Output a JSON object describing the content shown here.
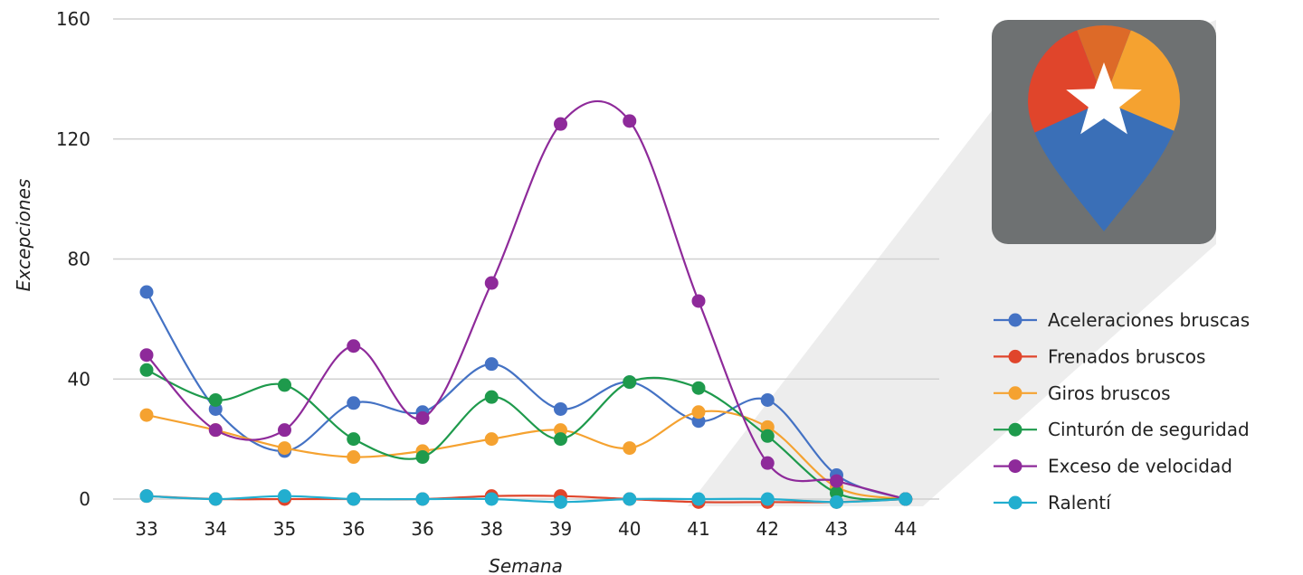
{
  "chart_data": {
    "type": "line",
    "title": "",
    "xlabel": "Semana",
    "ylabel": "Excepciones",
    "categories": [
      "33",
      "34",
      "35",
      "36",
      "36",
      "38",
      "39",
      "40",
      "41",
      "42",
      "43",
      "44"
    ],
    "ylim": [
      0,
      160
    ],
    "yticks": [
      0,
      40,
      80,
      120,
      160
    ],
    "grid": true,
    "smooth": true,
    "legend_position": "right",
    "series": [
      {
        "name": "Aceleraciones bruscas",
        "color": "#4472C4",
        "values": [
          69,
          30,
          16,
          32,
          29,
          45,
          30,
          39,
          26,
          33,
          8,
          0
        ]
      },
      {
        "name": "Frenados bruscos",
        "color": "#E0452B",
        "values": [
          1,
          0,
          0,
          0,
          0,
          1,
          1,
          0,
          -1,
          -1,
          -1,
          0
        ]
      },
      {
        "name": "Giros bruscos",
        "color": "#F5A230",
        "values": [
          28,
          23,
          17,
          14,
          16,
          20,
          23,
          17,
          29,
          24,
          4,
          0
        ]
      },
      {
        "name": "Cinturón de seguridad",
        "color": "#1E9A4C",
        "values": [
          43,
          33,
          38,
          20,
          14,
          34,
          20,
          39,
          37,
          21,
          2,
          0
        ]
      },
      {
        "name": "Exceso de velocidad",
        "color": "#8E2A9A",
        "values": [
          48,
          23,
          23,
          51,
          27,
          72,
          125,
          126,
          66,
          12,
          6,
          0
        ]
      },
      {
        "name": "Ralentí",
        "color": "#22AECF",
        "values": [
          1,
          0,
          1,
          0,
          0,
          0,
          -1,
          0,
          0,
          0,
          -1,
          0
        ]
      }
    ]
  },
  "logo": {
    "tile_color": "#6E7172",
    "shadow_color": "#E4E4E4",
    "pin_colors": [
      "#3A6FB7",
      "#E0452B",
      "#DD6A28",
      "#F5A230"
    ],
    "star_color": "#FFFFFF"
  }
}
